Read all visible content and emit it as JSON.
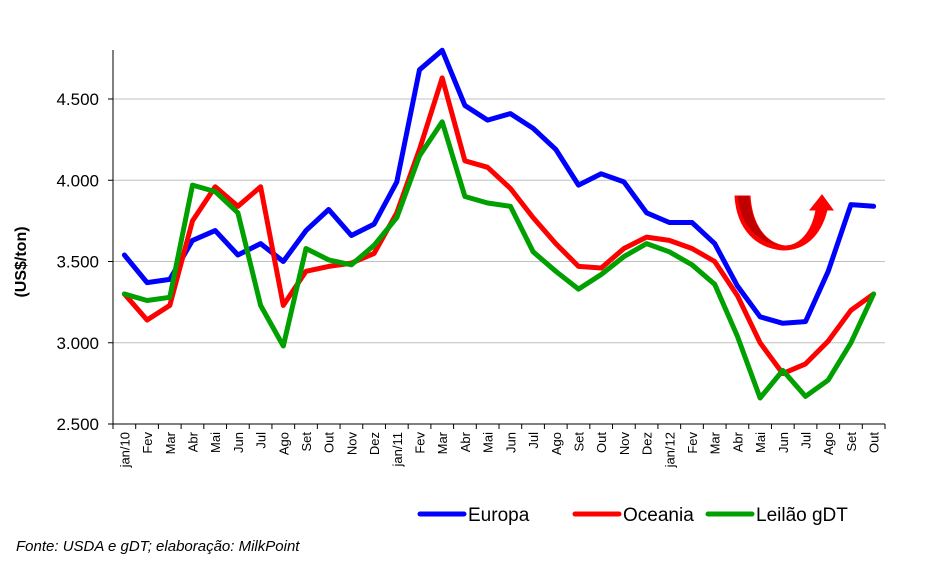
{
  "chart_data": {
    "type": "line",
    "title": "",
    "xlabel": "",
    "ylabel": "(US$/ton)",
    "ylim": [
      2500,
      4800
    ],
    "yticks": [
      "2.500",
      "3.000",
      "3.500",
      "4.000",
      "4.500"
    ],
    "ytick_values": [
      2500,
      3000,
      3500,
      4000,
      4500
    ],
    "grid": true,
    "legend_position": "bottom",
    "categories": [
      "jan/10",
      "Fev",
      "Mar",
      "Abr",
      "Mai",
      "Jun",
      "Jul",
      "Ago",
      "Set",
      "Out",
      "Nov",
      "Dez",
      "jan/11",
      "Fev",
      "Mar",
      "Abr",
      "Mai",
      "Jun",
      "Jul",
      "Ago",
      "Set",
      "Out",
      "Nov",
      "Dez",
      "jan/12",
      "Fev",
      "Mar",
      "Abr",
      "Mai",
      "Jun",
      "Jul",
      "Ago",
      "Set",
      "Out"
    ],
    "series": [
      {
        "name": "Europa",
        "color": "#0000ff",
        "values": [
          3540,
          3370,
          3390,
          3630,
          3690,
          3540,
          3610,
          3500,
          3690,
          3820,
          3660,
          3730,
          3990,
          4680,
          4800,
          4460,
          4370,
          4410,
          4320,
          4190,
          3970,
          4040,
          3990,
          3800,
          3740,
          3740,
          3610,
          3350,
          3160,
          3120,
          3130,
          3440,
          3850,
          3840
        ]
      },
      {
        "name": "Oceania",
        "color": "#ff0000",
        "values": [
          3300,
          3140,
          3230,
          3750,
          3960,
          3840,
          3960,
          3230,
          3440,
          3470,
          3490,
          3550,
          3800,
          4190,
          4630,
          4120,
          4080,
          3950,
          3770,
          3610,
          3470,
          3460,
          3580,
          3650,
          3630,
          3580,
          3500,
          3290,
          3000,
          2810,
          2870,
          3010,
          3200,
          3300
        ]
      },
      {
        "name": "Leilão gDT",
        "color": "#00a000",
        "values": [
          3300,
          3260,
          3280,
          3970,
          3930,
          3800,
          3230,
          2980,
          3580,
          3510,
          3480,
          3600,
          3770,
          4150,
          4360,
          3900,
          3860,
          3840,
          3560,
          3440,
          3330,
          3420,
          3530,
          3610,
          3560,
          3480,
          3360,
          3040,
          2660,
          2830,
          2670,
          2770,
          3000,
          3300
        ]
      }
    ],
    "annotations": [
      {
        "type": "u-turn-arrow-icon",
        "color": "#ff0000"
      }
    ]
  },
  "source": "Fonte: USDA e gDT; elaboração: MilkPoint"
}
